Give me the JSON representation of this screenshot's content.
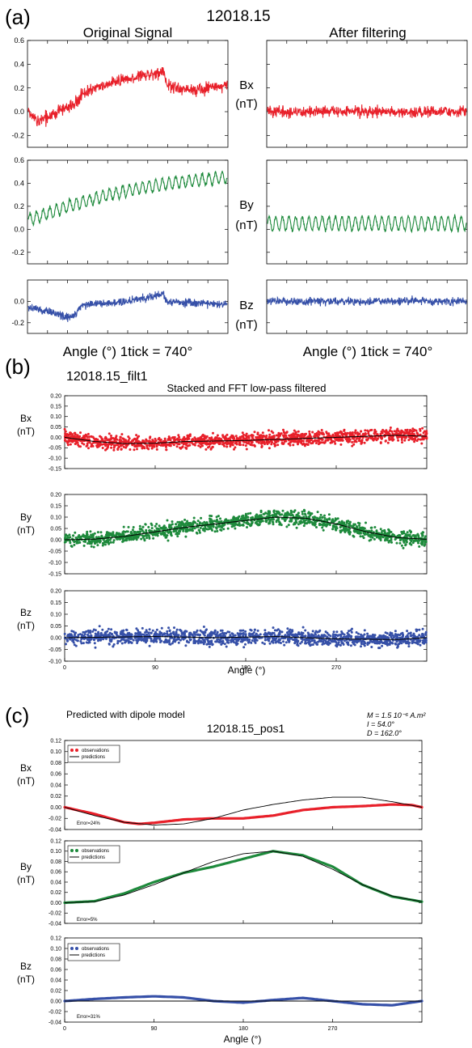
{
  "panel_a": {
    "label": "(a)",
    "title": "12018.15",
    "left_title": "Original Signal",
    "right_title": "After filtering",
    "channel_labels": [
      "Bx",
      "By",
      "Bz"
    ],
    "unit_label": "(nT)",
    "xlabel": "Angle (°) 1tick = 740°"
  },
  "panel_b": {
    "label": "(b)",
    "title": "12018.15_filt1",
    "subtitle": "Stacked and FFT low-pass filtered",
    "channel_labels": [
      "Bx",
      "By",
      "Bz"
    ],
    "unit_label": "(nT)",
    "xlabel": "Angle (°)"
  },
  "panel_c": {
    "label": "(c)",
    "title": "Predicted with dipole model",
    "subtitle": "12018.15_pos1",
    "params": [
      "M = 1.5 10⁻⁶ A.m²",
      "I = 54.0°",
      "D = 162.0°"
    ],
    "channel_labels": [
      "Bx",
      "By",
      "Bz"
    ],
    "unit_label": "(nT)",
    "legend_observations": "observations",
    "legend_predictions": "predictions",
    "xlabel": "Angle (°)",
    "errors": [
      "Error=24%",
      "Error=5%",
      "Error=31%"
    ]
  },
  "colors": {
    "Bx": "#e8202a",
    "By": "#1e8a3c",
    "Bz": "#3650a8",
    "model": "#000000"
  },
  "chart_data": [
    {
      "id": "a_original",
      "type": "line",
      "x_ticks_labeled": false,
      "series": [
        {
          "name": "Bx",
          "ylim": [
            -0.3,
            0.6
          ],
          "yticks": [
            -0.2,
            0.0,
            0.2,
            0.4,
            0.6
          ],
          "trend": [
            [
              0,
              -0.02
            ],
            [
              0.05,
              -0.08
            ],
            [
              0.15,
              0.0
            ],
            [
              0.25,
              0.08
            ],
            [
              0.27,
              0.15
            ],
            [
              0.4,
              0.23
            ],
            [
              0.55,
              0.3
            ],
            [
              0.68,
              0.33
            ],
            [
              0.7,
              0.22
            ],
            [
              0.82,
              0.18
            ],
            [
              1,
              0.22
            ]
          ],
          "noise_amplitude": 0.07
        },
        {
          "name": "By",
          "ylim": [
            -0.3,
            0.6
          ],
          "yticks": [
            -0.2,
            0.0,
            0.2,
            0.4,
            0.6
          ],
          "trend": [
            [
              0,
              0.08
            ],
            [
              0.2,
              0.2
            ],
            [
              0.4,
              0.3
            ],
            [
              0.6,
              0.37
            ],
            [
              0.8,
              0.42
            ],
            [
              1,
              0.45
            ]
          ],
          "oscillation_amplitude": 0.05,
          "oscillation_cycles": 30
        },
        {
          "name": "Bz",
          "ylim": [
            -0.3,
            0.2
          ],
          "yticks": [
            -0.2,
            0.0
          ],
          "trend": [
            [
              0,
              -0.05
            ],
            [
              0.1,
              -0.1
            ],
            [
              0.2,
              -0.15
            ],
            [
              0.24,
              -0.12
            ],
            [
              0.27,
              -0.03
            ],
            [
              0.5,
              0.0
            ],
            [
              0.68,
              0.07
            ],
            [
              0.7,
              0.0
            ],
            [
              1,
              -0.03
            ]
          ],
          "noise_amplitude": 0.05
        }
      ]
    },
    {
      "id": "a_filtered",
      "type": "line",
      "x_ticks_labeled": false,
      "series": [
        {
          "name": "Bx",
          "ylim": [
            -0.3,
            0.6
          ],
          "trend": [
            [
              0,
              0.0
            ],
            [
              1,
              0.0
            ]
          ],
          "noise_amplitude": 0.06
        },
        {
          "name": "By",
          "ylim": [
            -0.3,
            0.6
          ],
          "trend": [
            [
              0,
              0.05
            ],
            [
              1,
              0.05
            ]
          ],
          "oscillation_amplitude": 0.06,
          "oscillation_cycles": 30
        },
        {
          "name": "Bz",
          "ylim": [
            -0.3,
            0.2
          ],
          "trend": [
            [
              0,
              0.0
            ],
            [
              1,
              0.0
            ]
          ],
          "noise_amplitude": 0.05
        }
      ]
    },
    {
      "id": "b",
      "type": "scatter",
      "xlim": [
        0,
        360
      ],
      "xticks": [
        0,
        90,
        180,
        270
      ],
      "series": [
        {
          "name": "Bx",
          "ylim": [
            -0.15,
            0.2
          ],
          "yticks": [
            -0.15,
            -0.1,
            -0.05,
            0.0,
            0.05,
            0.1,
            0.15,
            0.2
          ],
          "spread": 0.04,
          "smooth": [
            [
              0,
              0.0
            ],
            [
              30,
              -0.02
            ],
            [
              60,
              -0.03
            ],
            [
              90,
              -0.028
            ],
            [
              120,
              -0.02
            ],
            [
              180,
              -0.015
            ],
            [
              240,
              -0.005
            ],
            [
              300,
              0.005
            ],
            [
              330,
              0.01
            ],
            [
              360,
              0.005
            ]
          ]
        },
        {
          "name": "By",
          "ylim": [
            -0.15,
            0.2
          ],
          "yticks": [
            -0.15,
            -0.1,
            -0.05,
            0.0,
            0.05,
            0.1,
            0.15,
            0.2
          ],
          "spread": 0.04,
          "smooth": [
            [
              0,
              0.0
            ],
            [
              30,
              0.003
            ],
            [
              60,
              0.015
            ],
            [
              90,
              0.035
            ],
            [
              120,
              0.055
            ],
            [
              150,
              0.07
            ],
            [
              180,
              0.085
            ],
            [
              210,
              0.1
            ],
            [
              240,
              0.095
            ],
            [
              270,
              0.07
            ],
            [
              300,
              0.035
            ],
            [
              330,
              0.01
            ],
            [
              360,
              0.002
            ]
          ]
        },
        {
          "name": "Bz",
          "ylim": [
            -0.1,
            0.2
          ],
          "yticks": [
            -0.1,
            -0.05,
            0.0,
            0.05,
            0.1,
            0.15,
            0.2
          ],
          "spread": 0.04,
          "smooth": [
            [
              0,
              0.0
            ],
            [
              90,
              0.005
            ],
            [
              150,
              0.0
            ],
            [
              210,
              0.005
            ],
            [
              270,
              -0.005
            ],
            [
              330,
              -0.008
            ],
            [
              360,
              0.0
            ]
          ]
        }
      ]
    },
    {
      "id": "c",
      "type": "line",
      "xlim": [
        0,
        360
      ],
      "xticks": [
        0,
        90,
        180,
        270
      ],
      "series": [
        {
          "name": "Bx",
          "ylim": [
            -0.04,
            0.12
          ],
          "yticks": [
            -0.04,
            -0.02,
            0.0,
            0.02,
            0.04,
            0.06,
            0.08,
            0.1,
            0.12
          ],
          "observations": [
            [
              0,
              0.0
            ],
            [
              30,
              -0.012
            ],
            [
              60,
              -0.027
            ],
            [
              75,
              -0.03
            ],
            [
              90,
              -0.028
            ],
            [
              120,
              -0.022
            ],
            [
              150,
              -0.02
            ],
            [
              180,
              -0.02
            ],
            [
              210,
              -0.015
            ],
            [
              240,
              -0.005
            ],
            [
              270,
              0.0
            ],
            [
              300,
              0.002
            ],
            [
              330,
              0.005
            ],
            [
              350,
              0.004
            ],
            [
              360,
              0.0
            ]
          ],
          "predictions": [
            [
              0,
              0.0
            ],
            [
              30,
              -0.015
            ],
            [
              60,
              -0.027
            ],
            [
              90,
              -0.032
            ],
            [
              120,
              -0.03
            ],
            [
              150,
              -0.02
            ],
            [
              180,
              -0.005
            ],
            [
              210,
              0.005
            ],
            [
              240,
              0.013
            ],
            [
              270,
              0.018
            ],
            [
              300,
              0.018
            ],
            [
              330,
              0.01
            ],
            [
              360,
              0.0
            ]
          ]
        },
        {
          "name": "By",
          "ylim": [
            -0.04,
            0.12
          ],
          "yticks": [
            -0.04,
            -0.02,
            0.0,
            0.02,
            0.04,
            0.06,
            0.08,
            0.1,
            0.12
          ],
          "observations": [
            [
              0,
              0.0
            ],
            [
              30,
              0.003
            ],
            [
              60,
              0.018
            ],
            [
              90,
              0.04
            ],
            [
              120,
              0.058
            ],
            [
              150,
              0.07
            ],
            [
              180,
              0.085
            ],
            [
              210,
              0.1
            ],
            [
              240,
              0.092
            ],
            [
              270,
              0.07
            ],
            [
              300,
              0.035
            ],
            [
              330,
              0.012
            ],
            [
              360,
              0.002
            ]
          ],
          "predictions": [
            [
              0,
              0.0
            ],
            [
              30,
              0.002
            ],
            [
              60,
              0.015
            ],
            [
              90,
              0.035
            ],
            [
              120,
              0.058
            ],
            [
              150,
              0.08
            ],
            [
              180,
              0.095
            ],
            [
              210,
              0.1
            ],
            [
              240,
              0.09
            ],
            [
              270,
              0.065
            ],
            [
              300,
              0.035
            ],
            [
              330,
              0.013
            ],
            [
              360,
              0.002
            ]
          ]
        },
        {
          "name": "Bz",
          "ylim": [
            -0.04,
            0.12
          ],
          "yticks": [
            -0.04,
            -0.02,
            0.0,
            0.02,
            0.04,
            0.06,
            0.08,
            0.1,
            0.12
          ],
          "observations": [
            [
              0,
              0.0
            ],
            [
              30,
              0.004
            ],
            [
              60,
              0.007
            ],
            [
              90,
              0.009
            ],
            [
              120,
              0.007
            ],
            [
              150,
              0.0
            ],
            [
              180,
              -0.003
            ],
            [
              210,
              0.002
            ],
            [
              240,
              0.006
            ],
            [
              270,
              0.0
            ],
            [
              300,
              -0.006
            ],
            [
              330,
              -0.008
            ],
            [
              360,
              0.0
            ]
          ],
          "predictions": [
            [
              0,
              0.0
            ],
            [
              90,
              0.0
            ],
            [
              180,
              0.0
            ],
            [
              270,
              0.0
            ],
            [
              360,
              0.0
            ]
          ]
        }
      ]
    }
  ]
}
